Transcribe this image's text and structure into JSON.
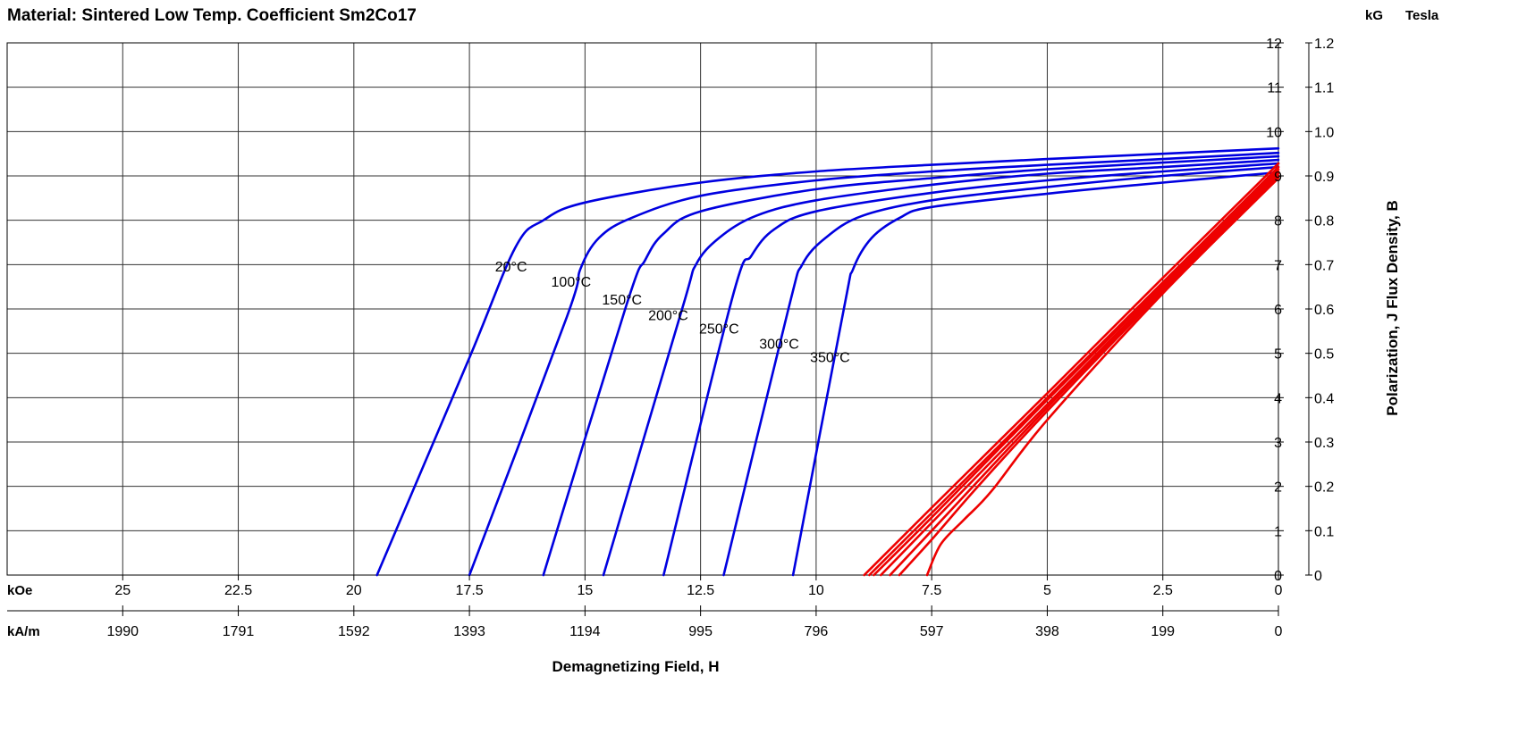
{
  "chart_data": {
    "type": "line",
    "title": "Material: Sintered Low Temp. Coefficient Sm2Co17",
    "xlabel": "Demagnetizing Field, H",
    "ylabel": "Polarization,  J        Flux Density,  B",
    "x_units": [
      "kOe",
      "kA/m"
    ],
    "y_units": [
      "kG",
      "Tesla"
    ],
    "xlim": [
      27.5,
      0
    ],
    "ylim": [
      0,
      12
    ],
    "grid": true,
    "x_ticks_koe": [
      "25",
      "22.5",
      "20",
      "17.5",
      "15",
      "12.5",
      "10",
      "7.5",
      "5",
      "2.5",
      "0"
    ],
    "x_ticks_kam": [
      "1990",
      "1791",
      "1592",
      "1393",
      "1194",
      "995",
      "796",
      "597",
      "398",
      "199",
      "0"
    ],
    "y_ticks_kg": [
      "0",
      "1",
      "2",
      "3",
      "4",
      "5",
      "6",
      "7",
      "8",
      "9",
      "10",
      "11",
      "12"
    ],
    "y_ticks_tesla": [
      "0",
      "0.1",
      "0.2",
      "0.3",
      "0.4",
      "0.5",
      "0.6",
      "0.7",
      "0.8",
      "0.9",
      "1.0",
      "1.1",
      "1.2"
    ],
    "series": [
      {
        "name": "20°C",
        "color": "#0000e0",
        "curve": "J",
        "x": [
          19.5,
          17.5,
          16.5,
          15.9,
          15.0,
          12.5,
          10,
          7.5,
          5,
          2.5,
          0
        ],
        "y": [
          0,
          4.9,
          7.4,
          8.0,
          8.4,
          8.85,
          9.1,
          9.25,
          9.38,
          9.5,
          9.62
        ]
      },
      {
        "name": "100°C",
        "color": "#0000e0",
        "curve": "J",
        "x": [
          17.5,
          15.4,
          15.1,
          14.7,
          14.0,
          12.5,
          10,
          7.5,
          5,
          2.5,
          0
        ],
        "y": [
          0,
          5.8,
          6.9,
          7.6,
          8.05,
          8.55,
          8.9,
          9.1,
          9.25,
          9.38,
          9.52
        ]
      },
      {
        "name": "150°C",
        "color": "#0000e0",
        "curve": "J",
        "x": [
          15.9,
          14.1,
          13.7,
          13.3,
          12.5,
          10,
          7.5,
          5,
          2.5,
          0
        ],
        "y": [
          0,
          6.1,
          7.1,
          7.7,
          8.2,
          8.7,
          8.95,
          9.15,
          9.3,
          9.44
        ]
      },
      {
        "name": "200°C",
        "color": "#0000e0",
        "curve": "J",
        "x": [
          14.6,
          12.9,
          12.6,
          12.1,
          11.3,
          10,
          7.5,
          5,
          2.5,
          0
        ],
        "y": [
          0,
          6.0,
          7.0,
          7.6,
          8.1,
          8.45,
          8.8,
          9.05,
          9.2,
          9.36
        ]
      },
      {
        "name": "250°C",
        "color": "#0000e0",
        "curve": "J",
        "x": [
          13.3,
          11.8,
          11.4,
          10.9,
          10.0,
          7.5,
          5,
          2.5,
          0
        ],
        "y": [
          0,
          6.3,
          7.2,
          7.8,
          8.2,
          8.62,
          8.9,
          9.1,
          9.28
        ]
      },
      {
        "name": "300°C",
        "color": "#0000e0",
        "curve": "J",
        "x": [
          12.0,
          10.6,
          10.3,
          9.8,
          9.0,
          7.5,
          5,
          2.5,
          0
        ],
        "y": [
          0,
          6.0,
          7.0,
          7.6,
          8.1,
          8.45,
          8.75,
          9.0,
          9.2
        ]
      },
      {
        "name": "350°C",
        "color": "#0000e0",
        "curve": "J",
        "x": [
          10.5,
          9.4,
          9.2,
          8.8,
          8.2,
          7.5,
          5,
          2.5,
          0
        ],
        "y": [
          0,
          6.0,
          6.9,
          7.6,
          8.05,
          8.3,
          8.6,
          8.85,
          9.08
        ]
      },
      {
        "name": "20°C",
        "color": "#ee0000",
        "curve": "B",
        "x": [
          8.96,
          7.5,
          5.0,
          2.5,
          0
        ],
        "y": [
          0,
          1.52,
          4.1,
          6.7,
          9.28
        ]
      },
      {
        "name": "100°C",
        "color": "#ee0000",
        "curve": "B",
        "x": [
          8.85,
          7.5,
          5.0,
          2.5,
          0
        ],
        "y": [
          0,
          1.4,
          4.0,
          6.6,
          9.2
        ]
      },
      {
        "name": "150°C",
        "color": "#ee0000",
        "curve": "B",
        "x": [
          8.75,
          7.5,
          5.0,
          2.5,
          0
        ],
        "y": [
          0,
          1.3,
          3.95,
          6.55,
          9.15
        ]
      },
      {
        "name": "200°C",
        "color": "#ee0000",
        "curve": "B",
        "x": [
          8.6,
          7.5,
          5.0,
          2.5,
          0
        ],
        "y": [
          0,
          1.18,
          3.85,
          6.5,
          9.1
        ]
      },
      {
        "name": "250°C",
        "color": "#ee0000",
        "curve": "B",
        "x": [
          8.4,
          7.5,
          5.0,
          2.5,
          0
        ],
        "y": [
          0,
          1.0,
          3.78,
          6.45,
          9.05
        ]
      },
      {
        "name": "300°C",
        "color": "#ee0000",
        "curve": "B",
        "x": [
          8.2,
          7.5,
          6.5,
          5.0,
          2.5,
          0
        ],
        "y": [
          0,
          0.8,
          2.0,
          3.7,
          6.4,
          9.0
        ]
      },
      {
        "name": "350°C",
        "color": "#ee0000",
        "curve": "B",
        "x": [
          7.6,
          7.3,
          6.8,
          6.2,
          5.0,
          2.5,
          0
        ],
        "y": [
          0,
          0.7,
          1.25,
          1.9,
          3.5,
          6.35,
          8.95
        ]
      }
    ],
    "annotations": [
      {
        "text": "20°C",
        "x": 16.6,
        "y": 6.85
      },
      {
        "text": "100°C",
        "x": 15.3,
        "y": 6.5
      },
      {
        "text": "150°C",
        "x": 14.2,
        "y": 6.1
      },
      {
        "text": "200°C",
        "x": 13.2,
        "y": 5.75
      },
      {
        "text": "250°C",
        "x": 12.1,
        "y": 5.45
      },
      {
        "text": "300°C",
        "x": 10.8,
        "y": 5.1
      },
      {
        "text": "350°C",
        "x": 9.7,
        "y": 4.8
      }
    ]
  }
}
